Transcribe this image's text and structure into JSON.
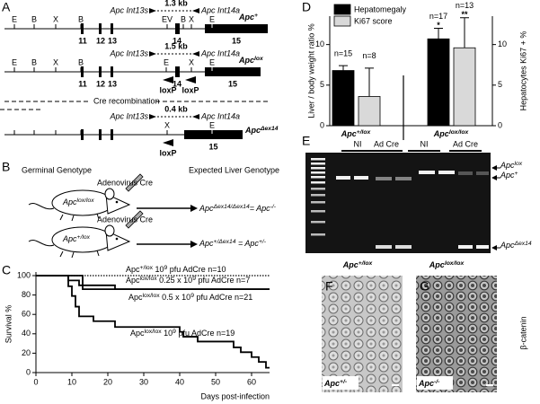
{
  "panel_a": {
    "letter": "A",
    "rows": [
      {
        "sites": [
          "E",
          "B",
          "X",
          "B"
        ],
        "exons": [
          "11",
          "12",
          "13"
        ],
        "primers": [
          "Apc Int13s",
          "Apc Int14a"
        ],
        "product": "1.3 kb",
        "exon14_sites": [
          "EV",
          "B",
          "X"
        ],
        "exon14": "14",
        "exon15_site": "E",
        "exon15": "15",
        "allele": [
          "Apc",
          "+"
        ]
      },
      {
        "sites": [
          "E",
          "B",
          "X",
          "B"
        ],
        "exons": [
          "11",
          "12",
          "13"
        ],
        "primers": [
          "Apc Int13s",
          "Apc Int14a"
        ],
        "product": "1.5 kb",
        "exon14_sites": [
          "E",
          "X"
        ],
        "exon14": "14",
        "loxp": [
          "loxP",
          "loxP"
        ],
        "exon15_site": "E",
        "exon15": "15",
        "allele": [
          "Apc",
          "lox"
        ]
      },
      {
        "primers": [
          "Apc Int13s",
          "Apc Int14a"
        ],
        "product": "0.4 kb",
        "exon14_sites": [
          "X"
        ],
        "loxp": [
          "loxP"
        ],
        "exon15_site": "E",
        "exon15": "15",
        "allele": [
          "Apc",
          "Δex14"
        ]
      }
    ],
    "cre": "Cre recombination"
  },
  "panel_b": {
    "letter": "B",
    "germinal": "Germinal Genotype",
    "expected": "Expected Liver Genotype",
    "cre": [
      "Adenovirus Cre",
      "Adenovirus Cre"
    ],
    "mice": [
      [
        "Apc",
        "lox/lox"
      ],
      [
        "Apc",
        "+/lox"
      ]
    ],
    "results": [
      [
        "Apc",
        "Δex14/Δex14",
        "= Apc",
        "-/-"
      ],
      [
        "Apc",
        "+/Δex14",
        " = Apc",
        "+/-"
      ]
    ]
  },
  "chart_data": [
    {
      "type": "line",
      "letter": "C",
      "ylabel": "Survival %",
      "xlabel": "Days post-infection",
      "xlim": [
        0,
        65
      ],
      "xticks": [
        0,
        10,
        20,
        30,
        40,
        50,
        60
      ],
      "ylim": [
        0,
        100
      ],
      "yticks": [
        0,
        20,
        40,
        60,
        80,
        100
      ],
      "series": [
        {
          "label": [
            "Apc",
            "+/lox",
            " 10",
            "9",
            " pfu AdCre n=10"
          ],
          "color": "#000000",
          "style": "dotted",
          "x": [
            0,
            65
          ],
          "values": [
            100,
            100
          ]
        },
        {
          "label": [
            "Apc",
            "lox/lox",
            " 0.25 x 10",
            "9",
            " pfu AdCre n=7"
          ],
          "color": "#000000",
          "style": "solid",
          "x": [
            0,
            13,
            13,
            65
          ],
          "values": [
            100,
            100,
            86,
            86
          ]
        },
        {
          "label": [
            "Apc",
            "lox/lox",
            " 0.5 x 10",
            "9",
            " pfu AdCre n=21"
          ],
          "color": "#000000",
          "style": "solid",
          "x": [
            0,
            9,
            9,
            12,
            12,
            22,
            22,
            65
          ],
          "values": [
            100,
            100,
            95,
            95,
            90,
            90,
            86,
            86
          ]
        },
        {
          "label": [
            "Apc",
            "lox/lox",
            " 10",
            "9",
            " pfu AdCre n=19"
          ],
          "color": "#000000",
          "style": "solid",
          "x": [
            0,
            9,
            9,
            10,
            10,
            11,
            11,
            12,
            12,
            16,
            16,
            22,
            22,
            40,
            40,
            41,
            41,
            45,
            45,
            55,
            55,
            57,
            57,
            60,
            60,
            62,
            62,
            64,
            64,
            65
          ],
          "values": [
            100,
            100,
            89,
            89,
            79,
            79,
            68,
            68,
            58,
            58,
            53,
            53,
            47,
            47,
            42,
            42,
            37,
            37,
            32,
            32,
            26,
            26,
            21,
            21,
            16,
            16,
            11,
            11,
            5,
            5
          ]
        }
      ]
    },
    {
      "type": "bar",
      "letter": "D",
      "categories": [
        [
          "Apc",
          "+/lox"
        ],
        [
          "Apc",
          "lox/lox"
        ]
      ],
      "ylabel": "Liver / body weight ratio %",
      "y2label": "Hepatocytes Ki67 + %",
      "ylim": [
        0,
        13.5
      ],
      "yticks": [
        0,
        5,
        10
      ],
      "y2lim": [
        0,
        13.5
      ],
      "y2ticks": [
        0,
        5,
        10
      ],
      "legend": "top-left",
      "series": [
        {
          "name": "Hepatomegaly",
          "color": "#000000",
          "values": [
            6.8,
            10.7
          ],
          "errors": [
            0.6,
            1.3
          ],
          "n_labels": [
            "n=15",
            "n=17"
          ],
          "significance": [
            null,
            "*"
          ]
        },
        {
          "name": "Ki67 score",
          "color": "#d9d9d9",
          "axis": "y2",
          "values": [
            3.6,
            9.6
          ],
          "errors": [
            3.5,
            3.7
          ],
          "n_labels": [
            "n=8",
            "n=13"
          ],
          "significance": [
            null,
            "**"
          ]
        }
      ]
    }
  ],
  "panel_e": {
    "letter": "E",
    "lanes": [
      "NI",
      "Ad Cre",
      "NI",
      "Ad Cre"
    ],
    "bands": [
      [
        "Apc",
        "lox"
      ],
      [
        "Apc",
        "+"
      ],
      [
        "Apc",
        "Δex14"
      ]
    ],
    "genotypes": [
      [
        "Apc",
        "+/lox"
      ],
      [
        "Apc",
        "lox/lox"
      ]
    ]
  },
  "panel_fg": {
    "letters": [
      "F",
      "G"
    ],
    "genotypes": [
      [
        "Apc",
        "+/-"
      ],
      [
        "Apc",
        "-/-"
      ]
    ],
    "stain": "β-catenin"
  }
}
